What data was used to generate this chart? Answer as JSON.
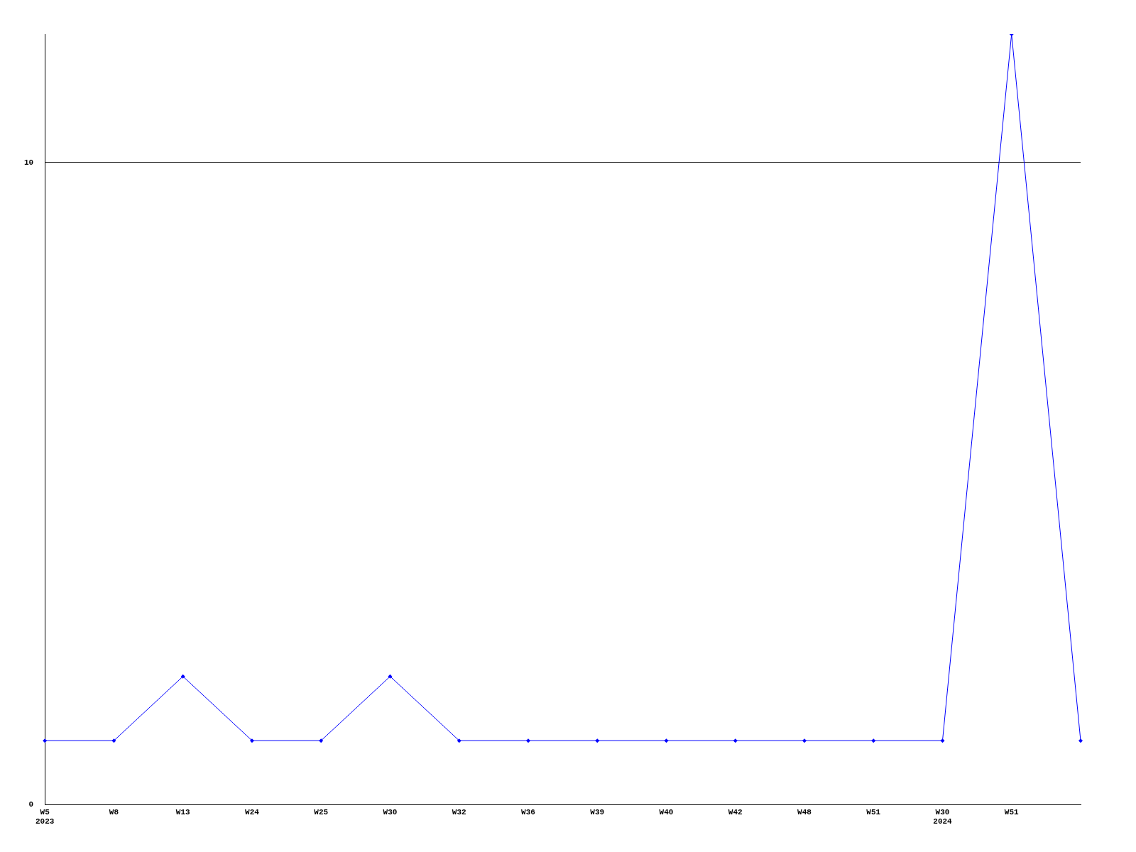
{
  "chart_data": {
    "type": "line",
    "categories": [
      "W5\n2023",
      "W8",
      "W13",
      "W24",
      "W25",
      "W30",
      "W32",
      "W36",
      "W39",
      "W40",
      "W42",
      "W48",
      "W51",
      "W30\n2024",
      "W51",
      null
    ],
    "series": [
      {
        "color": "#0000ff",
        "values": [
          1,
          1,
          2,
          1,
          1,
          2,
          1,
          1,
          1,
          1,
          1,
          1,
          1,
          1,
          12,
          1
        ]
      }
    ],
    "ylim": [
      0,
      12
    ],
    "yticks": [
      0,
      10
    ],
    "grid": "y",
    "legend": false,
    "marker": "diamond",
    "line_style": "solid"
  }
}
